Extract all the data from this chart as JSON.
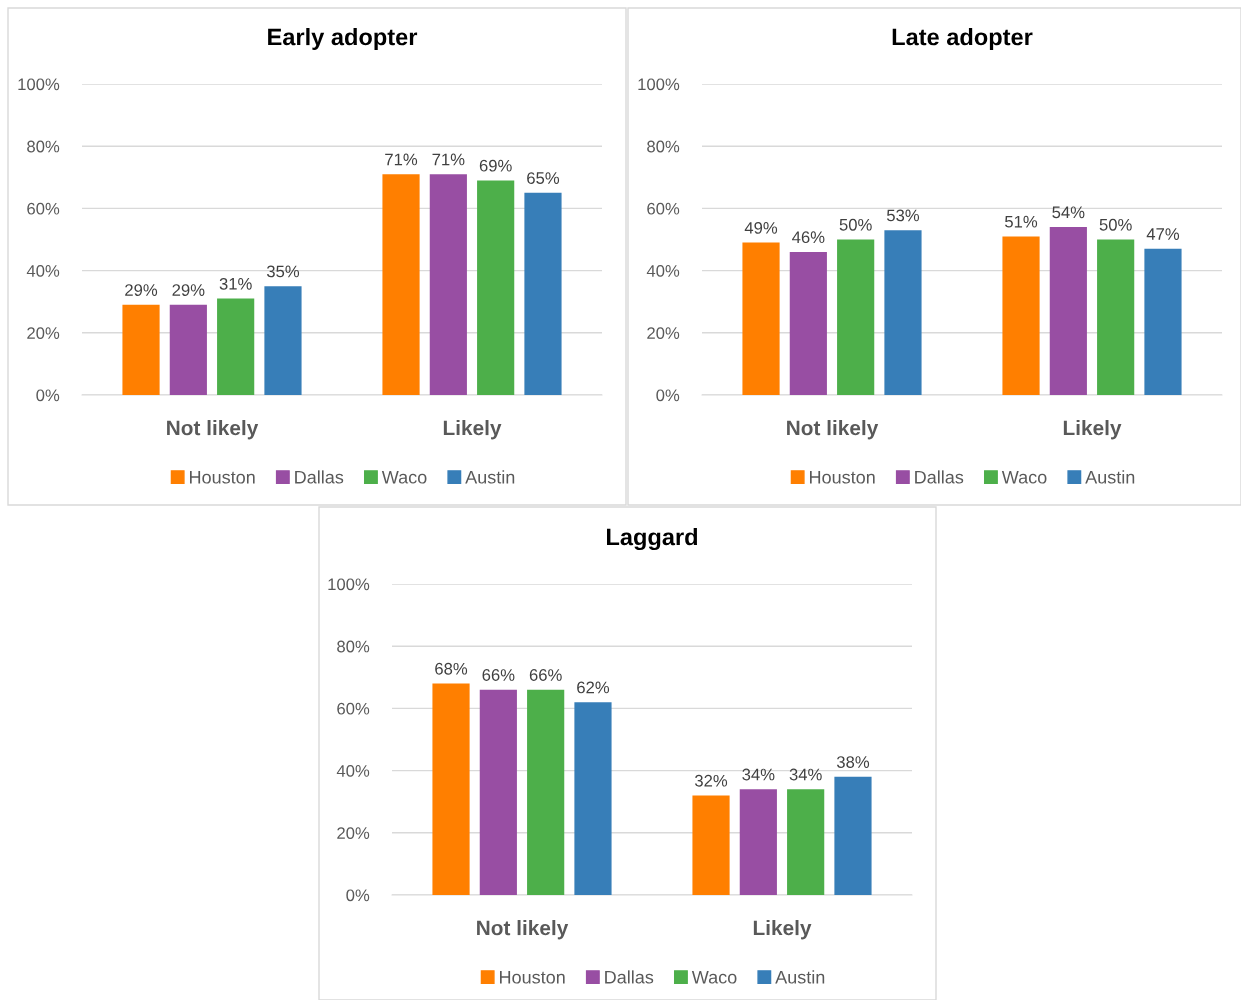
{
  "chart_data": [
    {
      "type": "bar",
      "title": "Early adopter",
      "categories": [
        "Not likely",
        "Likely"
      ],
      "ylim": [
        0,
        100
      ],
      "yticks": [
        {
          "value": 0,
          "label": "0%"
        },
        {
          "value": 20,
          "label": "20%"
        },
        {
          "value": 40,
          "label": "40%"
        },
        {
          "value": 60,
          "label": "60%"
        },
        {
          "value": 80,
          "label": "80%"
        },
        {
          "value": 100,
          "label": "100%"
        }
      ],
      "grid": "y",
      "legend": "bottom",
      "series": [
        {
          "name": "Houston",
          "color": "#ff7f00",
          "values": [
            29,
            71
          ],
          "value_labels": [
            "29%",
            "71%"
          ]
        },
        {
          "name": "Dallas",
          "color": "#984ea3",
          "values": [
            29,
            71
          ],
          "value_labels": [
            "29%",
            "71%"
          ]
        },
        {
          "name": "Waco",
          "color": "#4daf4a",
          "values": [
            31,
            69
          ],
          "value_labels": [
            "31%",
            "69%"
          ]
        },
        {
          "name": "Austin",
          "color": "#377eb8",
          "values": [
            35,
            65
          ],
          "value_labels": [
            "35%",
            "65%"
          ]
        }
      ]
    },
    {
      "type": "bar",
      "title": "Late adopter",
      "categories": [
        "Not likely",
        "Likely"
      ],
      "ylim": [
        0,
        100
      ],
      "yticks": [
        {
          "value": 0,
          "label": "0%"
        },
        {
          "value": 20,
          "label": "20%"
        },
        {
          "value": 40,
          "label": "40%"
        },
        {
          "value": 60,
          "label": "60%"
        },
        {
          "value": 80,
          "label": "80%"
        },
        {
          "value": 100,
          "label": "100%"
        }
      ],
      "grid": "y",
      "legend": "bottom",
      "series": [
        {
          "name": "Houston",
          "color": "#ff7f00",
          "values": [
            49,
            51
          ],
          "value_labels": [
            "49%",
            "51%"
          ]
        },
        {
          "name": "Dallas",
          "color": "#984ea3",
          "values": [
            46,
            54
          ],
          "value_labels": [
            "46%",
            "54%"
          ]
        },
        {
          "name": "Waco",
          "color": "#4daf4a",
          "values": [
            50,
            50
          ],
          "value_labels": [
            "50%",
            "50%"
          ]
        },
        {
          "name": "Austin",
          "color": "#377eb8",
          "values": [
            53,
            47
          ],
          "value_labels": [
            "53%",
            "47%"
          ]
        }
      ]
    },
    {
      "type": "bar",
      "title": "Laggard",
      "categories": [
        "Not likely",
        "Likely"
      ],
      "ylim": [
        0,
        100
      ],
      "yticks": [
        {
          "value": 0,
          "label": "0%"
        },
        {
          "value": 20,
          "label": "20%"
        },
        {
          "value": 40,
          "label": "40%"
        },
        {
          "value": 60,
          "label": "60%"
        },
        {
          "value": 80,
          "label": "80%"
        },
        {
          "value": 100,
          "label": "100%"
        }
      ],
      "grid": "y",
      "legend": "bottom",
      "series": [
        {
          "name": "Houston",
          "color": "#ff7f00",
          "values": [
            68,
            32
          ],
          "value_labels": [
            "68%",
            "32%"
          ]
        },
        {
          "name": "Dallas",
          "color": "#984ea3",
          "values": [
            66,
            34
          ],
          "value_labels": [
            "66%",
            "34%"
          ]
        },
        {
          "name": "Waco",
          "color": "#4daf4a",
          "values": [
            66,
            34
          ],
          "value_labels": [
            "66%",
            "34%"
          ]
        },
        {
          "name": "Austin",
          "color": "#377eb8",
          "values": [
            62,
            38
          ],
          "value_labels": [
            "62%",
            "38%"
          ]
        }
      ]
    }
  ]
}
